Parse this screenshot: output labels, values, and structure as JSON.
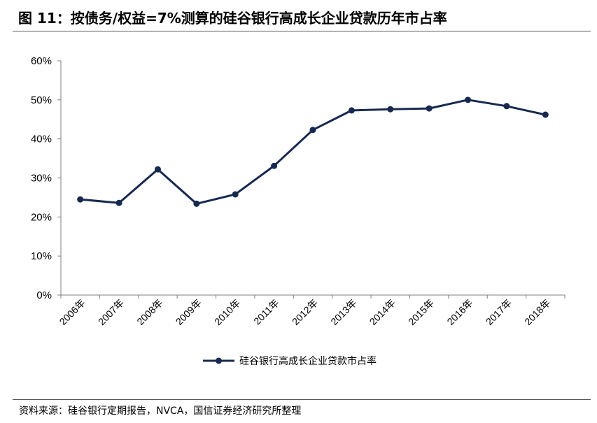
{
  "figure": {
    "title": "图 11：按债务/权益=7%测算的硅谷银行高成长企业贷款历年市占率",
    "source": "资料来源：硅谷银行定期报告，NVCA，国信证券经济研究所整理"
  },
  "colors": {
    "series": "#17294F",
    "axis": "#7f7f7f",
    "rule": "#555555"
  },
  "chart_data": {
    "type": "line",
    "title": "",
    "xlabel": "",
    "ylabel": "",
    "categories": [
      "2006年",
      "2007年",
      "2008年",
      "2009年",
      "2010年",
      "2011年",
      "2012年",
      "2013年",
      "2014年",
      "2015年",
      "2016年",
      "2017年",
      "2018年"
    ],
    "series": [
      {
        "name": "硅谷银行高成长企业贷款市占率",
        "values": [
          24.5,
          23.6,
          32.2,
          23.4,
          25.8,
          33.1,
          42.3,
          47.3,
          47.6,
          47.8,
          50.0,
          48.4,
          46.2
        ]
      }
    ],
    "ylim": [
      0,
      60
    ],
    "yticks": [
      0,
      10,
      20,
      30,
      40,
      50,
      60
    ],
    "ytick_labels": [
      "0%",
      "10%",
      "20%",
      "30%",
      "40%",
      "50%",
      "60%"
    ],
    "grid": false,
    "legend": "bottom-center",
    "marker": "circle"
  }
}
